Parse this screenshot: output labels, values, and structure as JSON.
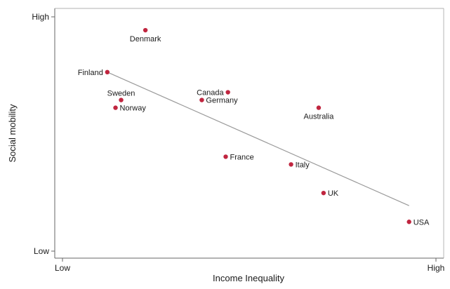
{
  "chart_data": {
    "type": "scatter",
    "title": "",
    "xlabel": "Income Inequality",
    "ylabel": "Social mobility",
    "xlim": [
      0,
      100
    ],
    "ylim": [
      0,
      100
    ],
    "x_ticks": [
      {
        "value": 0,
        "label": "Low"
      },
      {
        "value": 100,
        "label": "High"
      }
    ],
    "y_ticks": [
      {
        "value": 0,
        "label": "Low"
      },
      {
        "value": 100,
        "label": "High"
      }
    ],
    "grid": false,
    "legend": "none",
    "point_color": "#c0253f",
    "line_color": "#9a9a9a",
    "axis_color": "#666666",
    "points": [
      {
        "label": "Denmark",
        "x": 22.2,
        "y": 94.3
      },
      {
        "label": "Finland",
        "x": 12.0,
        "y": 76.4
      },
      {
        "label": "Sweden",
        "x": 15.7,
        "y": 64.5
      },
      {
        "label": "Norway",
        "x": 14.2,
        "y": 61.2
      },
      {
        "label": "Canada",
        "x": 44.3,
        "y": 67.8
      },
      {
        "label": "Germany",
        "x": 37.3,
        "y": 64.5
      },
      {
        "label": "Australia",
        "x": 68.6,
        "y": 61.2
      },
      {
        "label": "France",
        "x": 43.7,
        "y": 40.3
      },
      {
        "label": "Italy",
        "x": 61.2,
        "y": 37.0
      },
      {
        "label": "UK",
        "x": 69.9,
        "y": 24.8
      },
      {
        "label": "USA",
        "x": 92.8,
        "y": 12.5
      }
    ],
    "trend_line": {
      "x": [
        12.0,
        92.8
      ],
      "y": [
        76.4,
        19.4
      ]
    }
  }
}
